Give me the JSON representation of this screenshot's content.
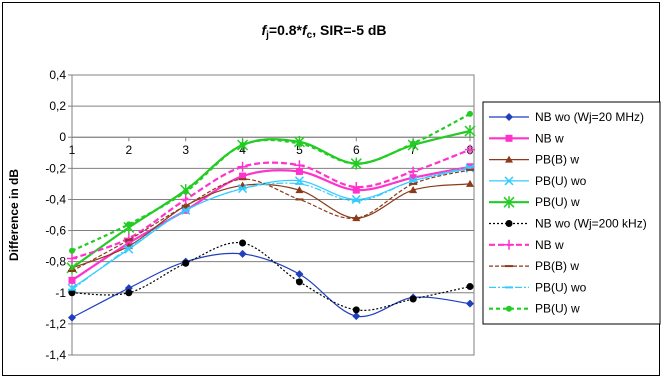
{
  "chart_data": {
    "type": "line",
    "title": {
      "f": "f",
      "j": "j",
      "eq": "=0.8*",
      "f2": "f",
      "c": "c",
      "rest": ", SIR=-5 dB"
    },
    "xlabel": "",
    "ylabel": "Difference in dB",
    "xlim": [
      1,
      8
    ],
    "ylim": [
      -1.4,
      0.4
    ],
    "x": [
      1,
      2,
      3,
      4,
      5,
      6,
      7,
      8
    ],
    "x_tick_labels": [
      "1",
      "2",
      "3",
      "4",
      "5",
      "6",
      "7",
      "8"
    ],
    "y_ticks": [
      0.4,
      0.2,
      0,
      -0.2,
      -0.4,
      -0.6,
      -0.8,
      -1,
      -1.2,
      -1.4
    ],
    "y_tick_labels": [
      "0,4",
      "0,2",
      "0",
      "-0,2",
      "-0,4",
      "-0,6",
      "-0,8",
      "-1",
      "-1,2",
      "-1,4"
    ],
    "grid": "horizontal",
    "legend_position": "right",
    "series": [
      {
        "name": "NB wo (Wj=20 MHz)",
        "color": "#1F3FBF",
        "dash": "none",
        "width": 1.2,
        "marker": "diamond",
        "values": [
          -1.16,
          -0.97,
          -0.8,
          -0.75,
          -0.88,
          -1.15,
          -1.03,
          -1.07
        ]
      },
      {
        "name": "NB w",
        "color": "#FF33CC",
        "dash": "none",
        "width": 2.2,
        "marker": "square",
        "values": [
          -0.92,
          -0.68,
          -0.47,
          -0.25,
          -0.22,
          -0.34,
          -0.26,
          -0.19
        ]
      },
      {
        "name": "PB(B) w",
        "color": "#8B3A1A",
        "dash": "none",
        "width": 1.2,
        "marker": "triangle",
        "values": [
          -0.84,
          -0.7,
          -0.44,
          -0.31,
          -0.34,
          -0.52,
          -0.34,
          -0.3
        ]
      },
      {
        "name": "PB(U) wo",
        "color": "#33CCFF",
        "dash": "none",
        "width": 1.2,
        "marker": "x",
        "values": [
          -0.97,
          -0.72,
          -0.47,
          -0.33,
          -0.28,
          -0.4,
          -0.28,
          -0.2
        ]
      },
      {
        "name": "PB(U) w",
        "color": "#22CC22",
        "dash": "none",
        "width": 2.2,
        "marker": "star",
        "values": [
          -0.84,
          -0.58,
          -0.34,
          -0.05,
          -0.03,
          -0.17,
          -0.05,
          0.04
        ]
      },
      {
        "name": "NB wo (Wj=200 kHz)",
        "color": "#000000",
        "dash": "2,2",
        "width": 1.2,
        "marker": "circle",
        "values": [
          -1.0,
          -1.0,
          -0.81,
          -0.68,
          -0.93,
          -1.11,
          -1.04,
          -0.96
        ]
      },
      {
        "name": "NB w",
        "color": "#FF33CC",
        "dash": "6,3",
        "width": 2.2,
        "marker": "plus",
        "values": [
          -0.78,
          -0.65,
          -0.4,
          -0.19,
          -0.18,
          -0.32,
          -0.22,
          -0.08
        ]
      },
      {
        "name": "PB(B) w",
        "color": "#8B3A1A",
        "dash": "4,2",
        "width": 1.2,
        "marker": "dash",
        "values": [
          -0.86,
          -0.66,
          -0.44,
          -0.27,
          -0.4,
          -0.52,
          -0.3,
          -0.21
        ]
      },
      {
        "name": "PB(U) wo",
        "color": "#33CCFF",
        "dash": "7,2,2,2",
        "width": 1.2,
        "marker": "dash",
        "values": [
          -0.98,
          -0.71,
          -0.47,
          -0.33,
          -0.3,
          -0.41,
          -0.28,
          -0.19
        ]
      },
      {
        "name": "PB(U) w",
        "color": "#22CC22",
        "dash": "4,3",
        "width": 2.2,
        "marker": "dot",
        "values": [
          -0.73,
          -0.56,
          -0.35,
          -0.05,
          -0.04,
          -0.17,
          -0.04,
          0.15
        ]
      }
    ]
  }
}
